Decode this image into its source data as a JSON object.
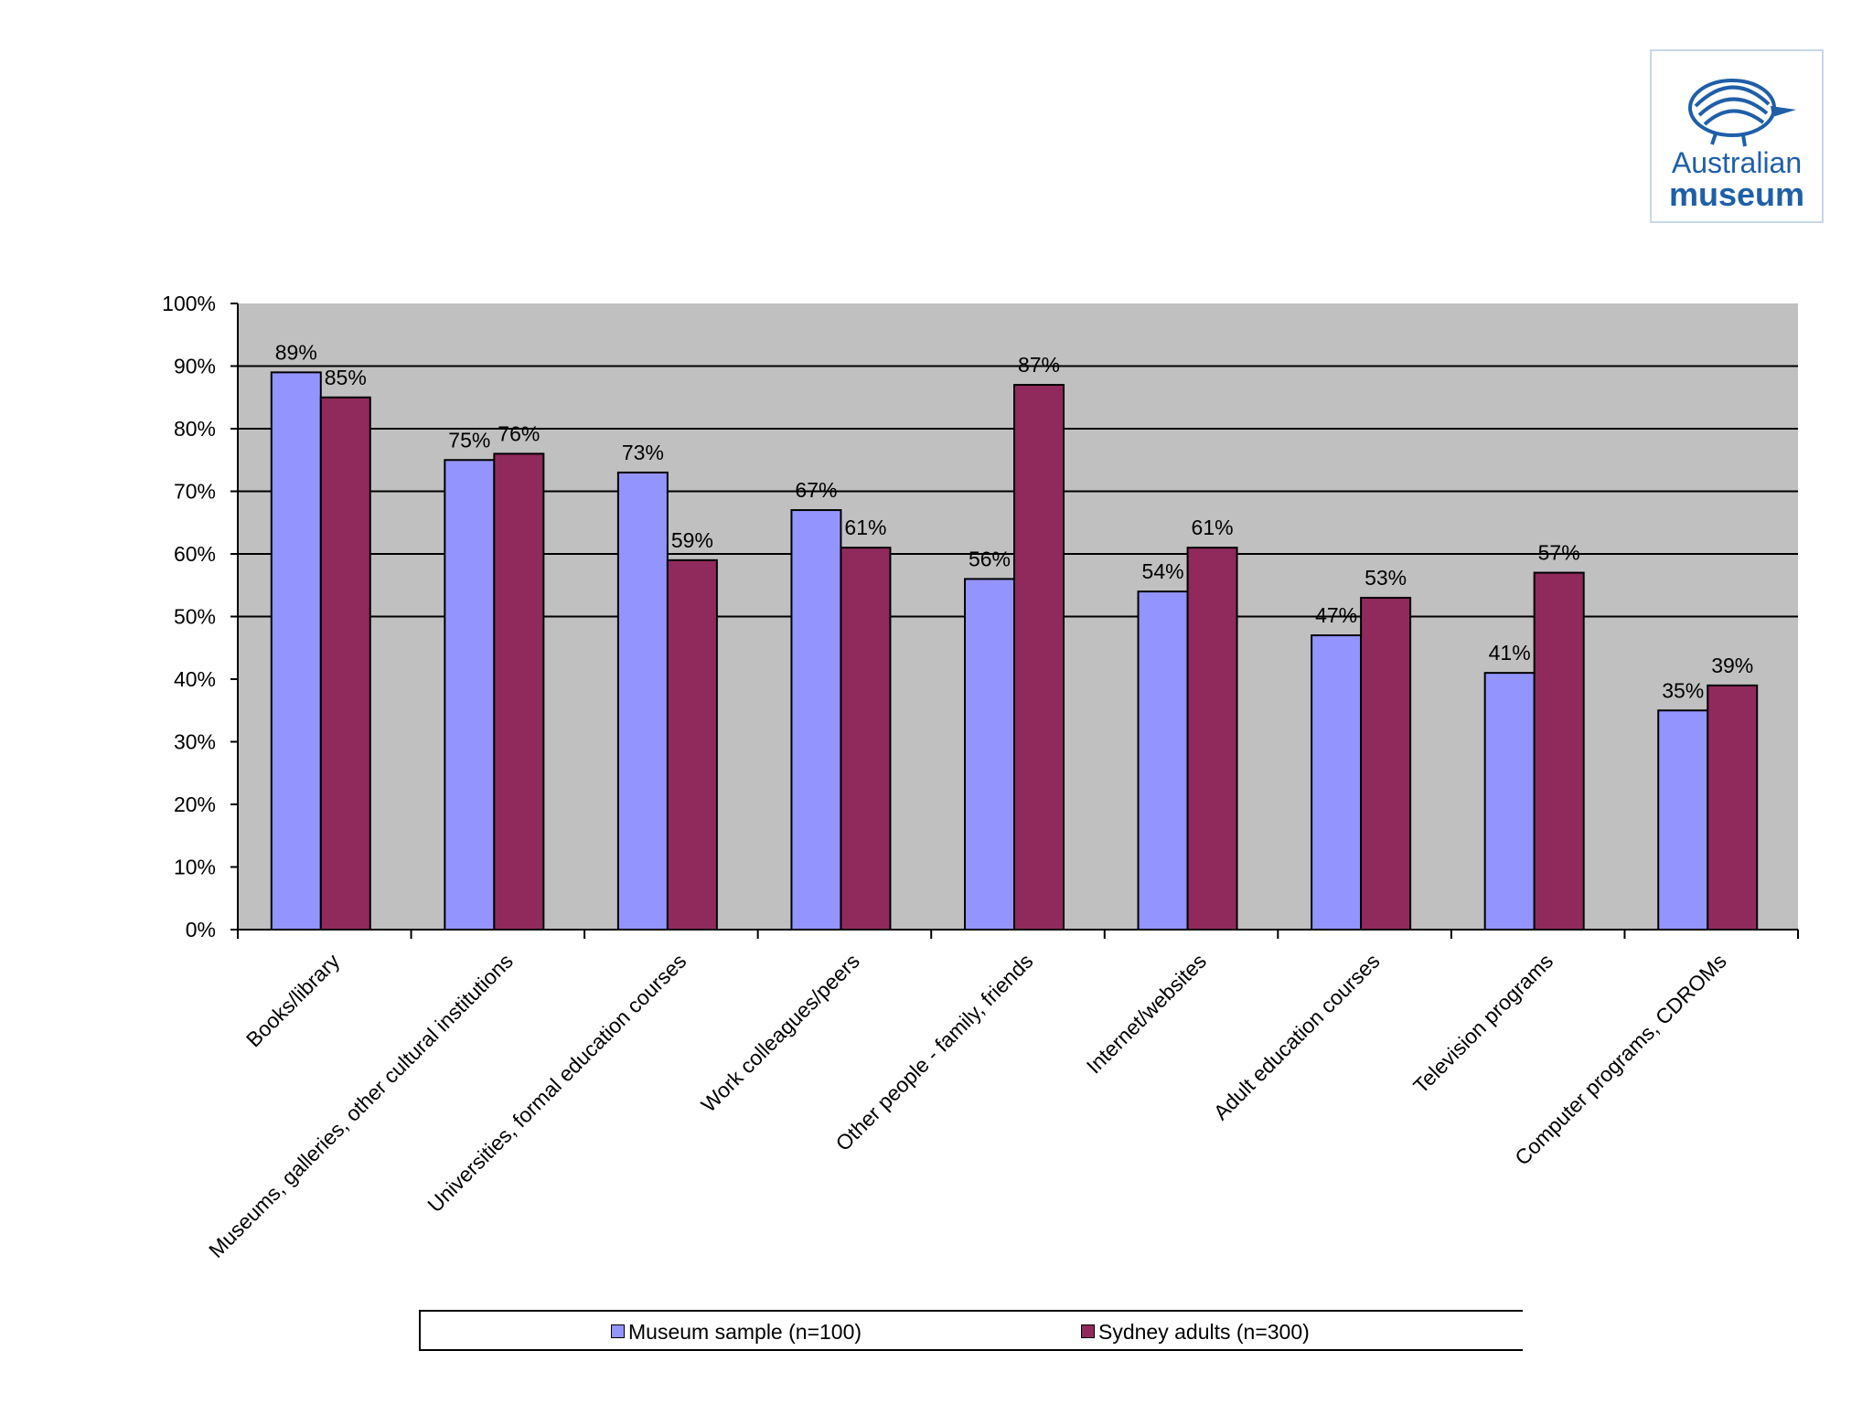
{
  "logo": {
    "line1": "Australian",
    "line2": "museum"
  },
  "colors": {
    "museum": "#9494FF",
    "sydney": "#902A5C",
    "plot_bg": "#C0C0C0"
  },
  "chart_data": {
    "type": "bar",
    "title": "",
    "xlabel": "",
    "ylabel": "",
    "ylim": [
      0,
      100
    ],
    "yticks": [
      "0%",
      "10%",
      "20%",
      "30%",
      "40%",
      "50%",
      "60%",
      "70%",
      "80%",
      "90%",
      "100%"
    ],
    "gridlines": [
      50,
      60,
      70,
      80,
      90
    ],
    "categories": [
      "Books/library",
      "Museums, galleries, other cultural institutions",
      "Universities, formal education courses",
      "Work colleagues/peers",
      "Other people - family, friends",
      "Internet/websites",
      "Adult education courses",
      "Television programs",
      "Computer programs, CDROMs"
    ],
    "series": [
      {
        "name": "Museum sample (n=100)",
        "values": [
          89,
          75,
          73,
          67,
          56,
          54,
          47,
          41,
          35
        ],
        "labels": [
          "89%",
          "75%",
          "73%",
          "67%",
          "56%",
          "54%",
          "47%",
          "41%",
          "35%"
        ]
      },
      {
        "name": "Sydney adults (n=300)",
        "values": [
          85,
          76,
          59,
          61,
          87,
          61,
          53,
          57,
          39
        ],
        "labels": [
          "85%",
          "76%",
          "59%",
          "61%",
          "87%",
          "61%",
          "53%",
          "57%",
          "39%"
        ]
      }
    ],
    "legend_position": "bottom"
  }
}
